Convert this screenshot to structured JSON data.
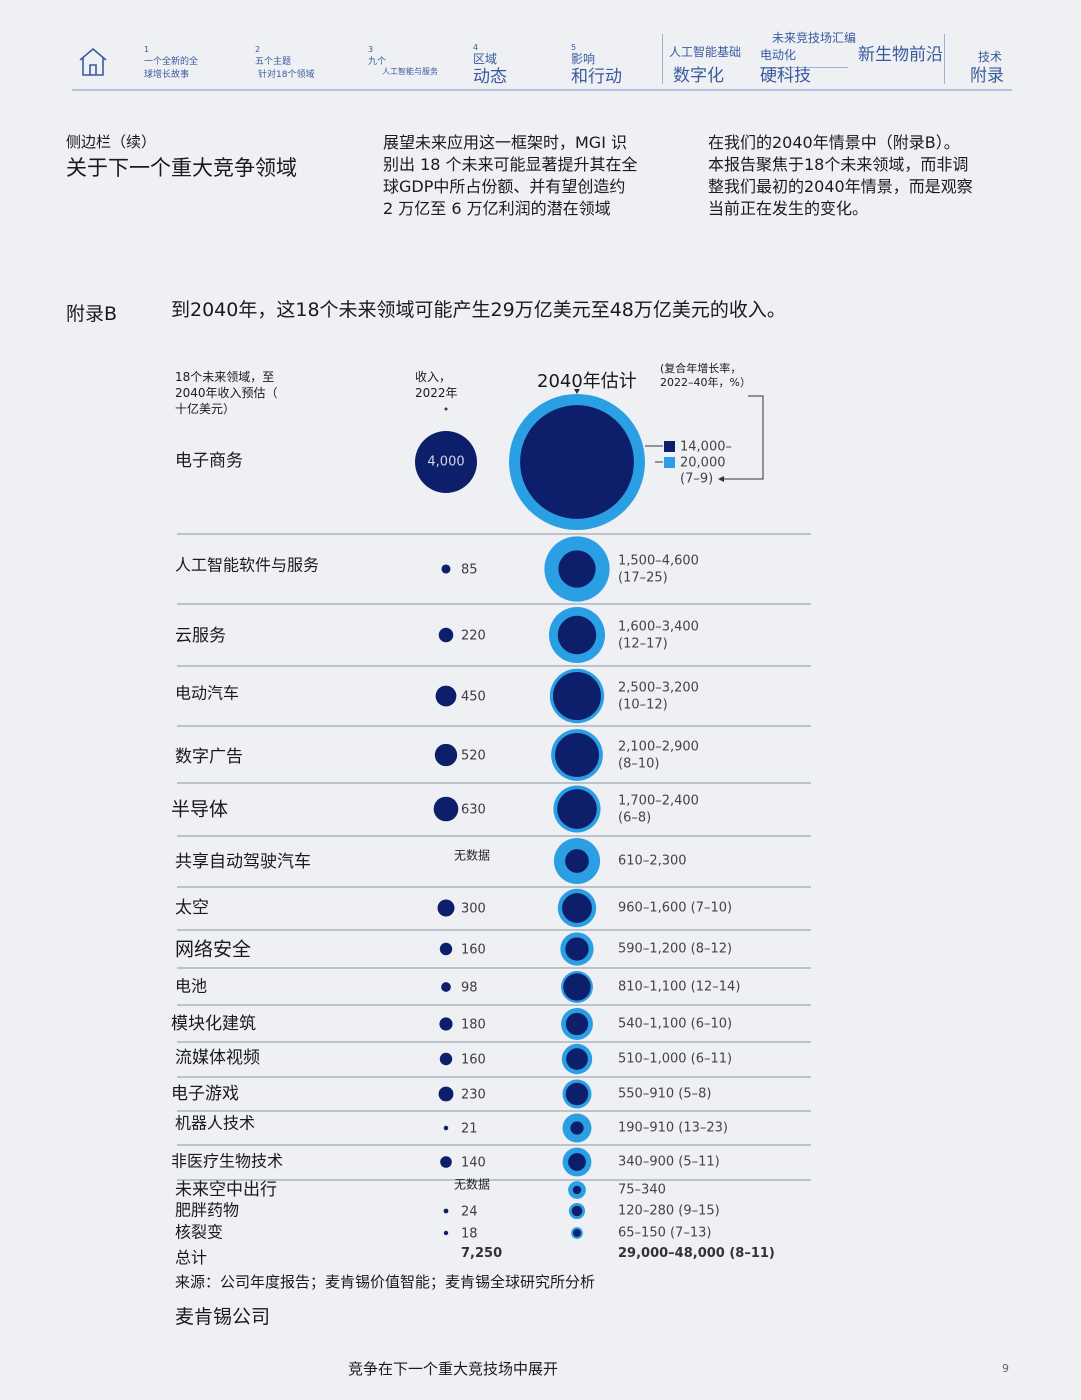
{
  "nav": {
    "items": [
      {
        "num": "1",
        "text": "一个全新的全\n球增长故事"
      },
      {
        "num": "2",
        "text": "五个主题",
        "sub": "针对18个领域"
      },
      {
        "num": "3",
        "text": "九个",
        "sub": "人工智能与服务"
      },
      {
        "num": "4",
        "text": "区域",
        "big": "动态"
      },
      {
        "num": "5",
        "text": "影响",
        "big": "和行动"
      }
    ],
    "ai_foundation": "人工智能基础",
    "digitalization": "数字化",
    "arena_top": "未来竞技场汇编",
    "electrification": "电动化",
    "hard_tech": "硬科技",
    "bio_frontier": "新生物前沿",
    "tech": "技术",
    "appendix": "附录"
  },
  "intro": {
    "sidebar_cont": "侧边栏（续）",
    "sidebar_title": "关于下一个重大竞争领域",
    "para1": "展望未来应用这一框架时，MGI 识\n别出 18 个未来可能显著提升其在全\n球GDP中所占份额、并有望创造约\n2 万亿至 6 万亿利润的潜在领域",
    "para2": "在我们的2040年情景中（附录B）。\n本报告聚焦于18个未来领域，而非调\n整我们最初的2040年情景，而是观察\n当前正在发生的变化。"
  },
  "exhibit": {
    "label": "附录B",
    "title": "到2040年，这18个未来领域可能产生29万亿美元至48万亿美元的收入。",
    "col_arenas": "18个未来领域，至\n2040年收入预估（\n十亿美元）",
    "col_rev2022": "收入，\n2022年",
    "col_2040": "2040年估计",
    "col_cagr": "(复合年增长率，\n2022–40年，%）"
  },
  "chart_data": {
    "type": "bubble",
    "unit": "十亿美元",
    "legend": {
      "low": "14,000–",
      "high": "20,000",
      "cagr": "(7–9)"
    },
    "rows": [
      {
        "name": "电子商务",
        "rev2022": 4000,
        "rev2022_label": "4,000",
        "low": 14000,
        "high": 20000,
        "est_label": ""
      },
      {
        "name": "人工智能软件与服务",
        "rev2022": 85,
        "rev2022_label": "85",
        "low": 1500,
        "high": 4600,
        "est_label": "1,500–4,600\n(17–25)"
      },
      {
        "name": "云服务",
        "rev2022": 220,
        "rev2022_label": "220",
        "low": 1600,
        "high": 3400,
        "est_label": "1,600–3,400\n(12–17)"
      },
      {
        "name": "电动汽车",
        "rev2022": 450,
        "rev2022_label": "450",
        "low": 2500,
        "high": 3200,
        "est_label": "2,500–3,200\n(10–12)"
      },
      {
        "name": "数字广告",
        "rev2022": 520,
        "rev2022_label": "520",
        "low": 2100,
        "high": 2900,
        "est_label": "2,100–2,900\n(8–10)"
      },
      {
        "name": "半导体",
        "rev2022": 630,
        "rev2022_label": "630",
        "low": 1700,
        "high": 2400,
        "est_label": "1,700–2,400\n(6–8)"
      },
      {
        "name": "共享自动驾驶汽车",
        "rev2022": null,
        "rev2022_label": "无数据",
        "low": 610,
        "high": 2300,
        "est_label": "610–2,300"
      },
      {
        "name": "太空",
        "rev2022": 300,
        "rev2022_label": "300",
        "low": 960,
        "high": 1600,
        "est_label": "960–1,600 (7–10)"
      },
      {
        "name": "网络安全",
        "rev2022": 160,
        "rev2022_label": "160",
        "low": 590,
        "high": 1200,
        "est_label": "590–1,200 (8–12)"
      },
      {
        "name": "电池",
        "rev2022": 98,
        "rev2022_label": "98",
        "low": 810,
        "high": 1100,
        "est_label": "810–1,100 (12–14)"
      },
      {
        "name": "模块化建筑",
        "rev2022": 180,
        "rev2022_label": "180",
        "low": 540,
        "high": 1100,
        "est_label": "540–1,100 (6–10)"
      },
      {
        "name": "流媒体视频",
        "rev2022": 160,
        "rev2022_label": "160",
        "low": 510,
        "high": 1000,
        "est_label": "510–1,000 (6–11)"
      },
      {
        "name": "电子游戏",
        "rev2022": 230,
        "rev2022_label": "230",
        "low": 550,
        "high": 910,
        "est_label": "550–910 (5–8)"
      },
      {
        "name": "机器人技术",
        "rev2022": 21,
        "rev2022_label": "21",
        "low": 190,
        "high": 910,
        "est_label": "190–910 (13–23)"
      },
      {
        "name": "非医疗生物技术",
        "rev2022": 140,
        "rev2022_label": "140",
        "low": 340,
        "high": 900,
        "est_label": "340–900 (5–11)"
      },
      {
        "name": "未来空中出行",
        "rev2022": null,
        "rev2022_label": "无数据",
        "low": 75,
        "high": 340,
        "est_label": "75–340"
      },
      {
        "name": "肥胖药物",
        "rev2022": 24,
        "rev2022_label": "24",
        "low": 120,
        "high": 280,
        "est_label": "120–280 (9–15)"
      },
      {
        "name": "核裂变",
        "rev2022": 18,
        "rev2022_label": "18",
        "low": 65,
        "high": 150,
        "est_label": "65–150 (7–13)"
      }
    ],
    "total": {
      "label": "总计",
      "rev2022": "7,250",
      "est": "29,000–48,000 (8–11)"
    },
    "colors": {
      "dark": "#0d1f6b",
      "light": "#2a9fe4"
    }
  },
  "source": "来源：公司年度报告；麦肯锡价值智能；麦肯锡全球研究所分析",
  "company": "麦肯锡公司",
  "footer": "竞争在下一个重大竞技场中展开",
  "page_number": "9"
}
